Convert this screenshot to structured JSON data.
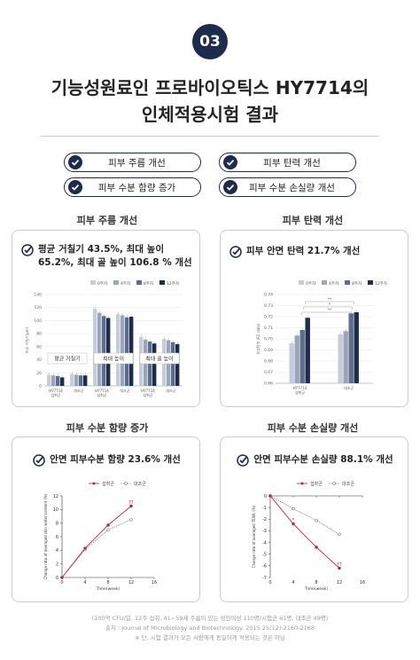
{
  "badge": "03",
  "title_line1": "기능성원료인 프로바이오틱스 HY7714의",
  "title_line2": "인체적용시험 결과",
  "pills": [
    "피부 주름 개선",
    "피부 탄력 개선",
    "피부 수분 함량 증가",
    "피부 수분 손실량 개선"
  ],
  "sections": {
    "wrinkle": {
      "title": "피부 주름 개선",
      "headline": "평균 거칠기 43.5%, 최대 높이 65.2%, 최대 골 높이 106.8 % 개선"
    },
    "elasticity": {
      "title": "피부 탄력 개선",
      "headline": "피부 안면 탄력 21.7% 개선"
    },
    "moisture": {
      "title": "피부 수분 함량 증가",
      "headline": "안면 피부수분 함량 23.6% 개선"
    },
    "tewl": {
      "title": "피부 수분 손실량 개선",
      "headline": "안면 피부수분 손실량 88.1% 개선"
    }
  },
  "chart_data": [
    {
      "type": "bar",
      "legend": [
        "0주차",
        "4주차",
        "8주차",
        "12주차"
      ],
      "ylabel": "피부 거칠기(μm)",
      "ylim": [
        0,
        140
      ],
      "yticks": [
        0,
        20,
        40,
        60,
        80,
        100,
        120,
        140
      ],
      "groups": [
        "평균 거칠기",
        "최대 높이",
        "최대 골 높이"
      ],
      "categories": [
        "HY7714 섭취군",
        "대조군",
        "HY7714 섭취군",
        "대조군",
        "HY7714 섭취군",
        "대조군"
      ],
      "series": [
        {
          "name": "0주차",
          "values": [
            17,
            18,
            118,
            110,
            75,
            72
          ]
        },
        {
          "name": "4주차",
          "values": [
            16,
            17,
            112,
            108,
            71,
            70
          ]
        },
        {
          "name": "8주차",
          "values": [
            15,
            16,
            107,
            105,
            68,
            67
          ]
        },
        {
          "name": "12주차",
          "values": [
            13,
            16,
            104,
            106,
            65,
            64
          ]
        }
      ]
    },
    {
      "type": "bar",
      "legend": [
        "0주차",
        "4주차",
        "8주차",
        "12주차"
      ],
      "ylabel": "피부탄력 (R2 ratio)",
      "ylim": [
        0.66,
        0.74
      ],
      "yticks": [
        0.66,
        0.67,
        0.68,
        0.69,
        0.7,
        0.71,
        0.72,
        0.73,
        0.74
      ],
      "categories": [
        "HY7714 섭취군",
        "대조군"
      ],
      "series": [
        {
          "name": "0주차",
          "values": [
            0.696,
            0.704
          ]
        },
        {
          "name": "4주차",
          "values": [
            0.703,
            0.707
          ]
        },
        {
          "name": "8주차",
          "values": [
            0.708,
            0.723
          ]
        },
        {
          "name": "12주차",
          "values": [
            0.719,
            0.724
          ]
        }
      ],
      "annotations": [
        "**",
        "*"
      ]
    },
    {
      "type": "line",
      "legend": [
        "섭취군",
        "대조군"
      ],
      "xlabel": "Time(week)",
      "ylabel": "Change rate of averaged skin water content (%)",
      "xlim": [
        0,
        16
      ],
      "ylim": [
        0,
        12
      ],
      "xticks": [
        0,
        4,
        8,
        12,
        16
      ],
      "yticks": [
        0,
        2,
        4,
        6,
        8,
        10,
        12
      ],
      "x": [
        0,
        4,
        8,
        12
      ],
      "series": [
        {
          "name": "섭취군",
          "values": [
            0,
            4.3,
            7.7,
            10.5
          ]
        },
        {
          "name": "대조군",
          "values": [
            0,
            4.1,
            7.0,
            8.5
          ]
        }
      ],
      "annotations": [
        "††"
      ]
    },
    {
      "type": "line",
      "legend": [
        "섭취군",
        "대조군"
      ],
      "xlabel": "Time(week)",
      "ylabel": "Change rate of averaged TEWL (%)",
      "xlim": [
        0,
        16
      ],
      "ylim": [
        -7,
        0
      ],
      "xticks": [
        0,
        4,
        8,
        12,
        16
      ],
      "yticks": [
        0,
        -1,
        -2,
        -3,
        -4,
        -5,
        -6,
        -7
      ],
      "x": [
        0,
        4,
        8,
        12
      ],
      "series": [
        {
          "name": "섭취군",
          "values": [
            0,
            -2.4,
            -4.4,
            -6.2
          ]
        },
        {
          "name": "대조군",
          "values": [
            0,
            -1.1,
            -2.1,
            -3.3
          ]
        }
      ],
      "annotations": [
        "*",
        "††"
      ]
    }
  ],
  "footnote": [
    "(100억 CFU/일, 12주 섭취, 41~59세 주름이 있는 성인여성 110명/시험군 61명, 대조군 49명)",
    "출처 : Journal of Microbiology and Biotechnology. 2015 25(12):2160-2168",
    "※ 단, 시험 결과가 모든 사람에게 동일하게 적용되는 것은 아님"
  ],
  "colors": {
    "navy": "#1d2b4c",
    "bar0": "#c6ccd8",
    "bar1": "#9aa5b9",
    "bar2": "#5d6d8c",
    "bar3": "#1d2b4c",
    "red": "#b3263a"
  }
}
